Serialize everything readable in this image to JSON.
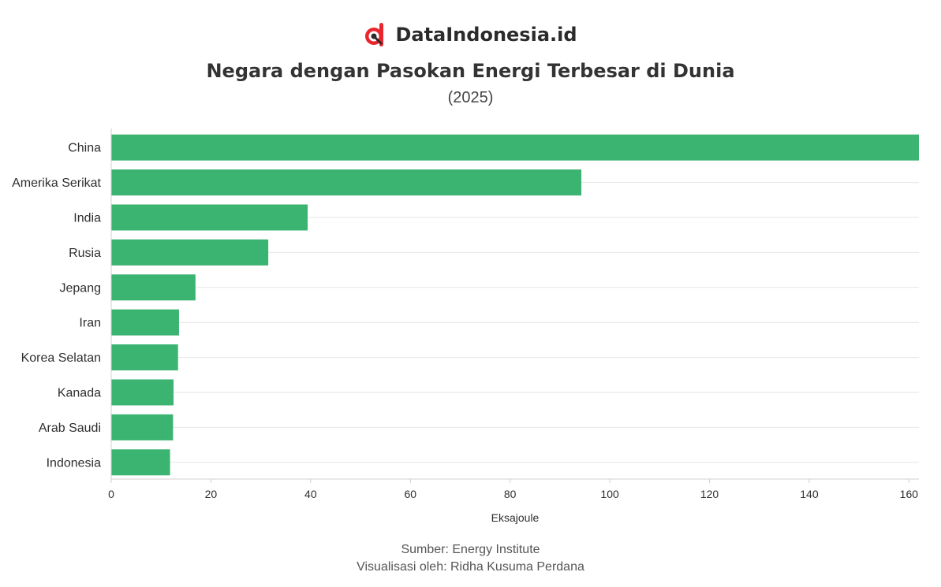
{
  "brand": {
    "name": "DataIndonesia.id",
    "logo_icon": "dataindonesia-logo-icon",
    "logo_color": "#e8262e"
  },
  "chart_data": {
    "type": "bar",
    "orientation": "horizontal",
    "title": "Negara dengan Pasokan Energi Terbesar di Dunia",
    "subtitle": "(2025)",
    "categories": [
      "China",
      "Amerika Serikat",
      "India",
      "Rusia",
      "Jepang",
      "Iran",
      "Korea Selatan",
      "Kanada",
      "Arab Saudi",
      "Indonesia"
    ],
    "values": [
      170.7,
      94.3,
      39.4,
      31.5,
      16.9,
      13.6,
      13.4,
      12.5,
      12.4,
      11.8
    ],
    "xlabel": "Eksajoule",
    "ylabel": "",
    "xlim": [
      0,
      162
    ],
    "xticks": [
      0,
      20,
      40,
      60,
      80,
      100,
      120,
      140,
      160
    ],
    "bar_color": "#3bb371",
    "grid": true
  },
  "footer": {
    "source": "Sumber: Energy Institute",
    "visualization": "Visualisasi oleh: Ridha Kusuma Perdana"
  }
}
